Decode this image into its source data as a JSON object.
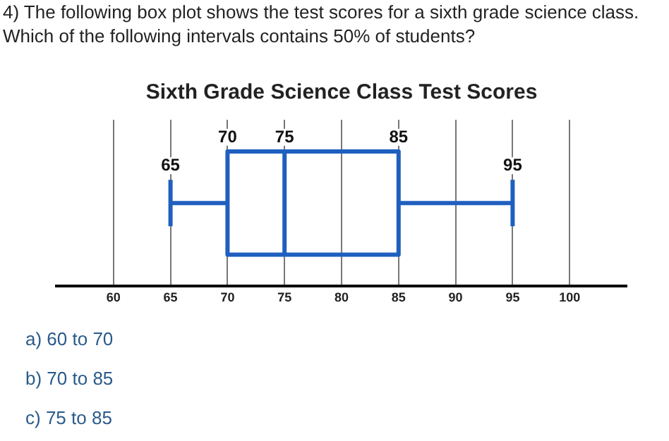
{
  "chart_data": {
    "type": "box",
    "title": "Sixth Grade Science Class Test Scores",
    "orientation": "horizontal",
    "categories": [
      null
    ],
    "boxes": [
      {
        "low": 65,
        "q1": 70,
        "median": 75,
        "q3": 85,
        "high": 95
      }
    ],
    "color": "#1f5fbf",
    "grid": "x",
    "xlim": [
      55,
      105
    ],
    "xticks": [
      60,
      65,
      70,
      75,
      80,
      85,
      90,
      95,
      100
    ],
    "annotations": [
      "4) The following box plot shows the test scores for a sixth grade science class. Which of the following intervals contains 50% of students?",
      "a) 60 to 70",
      "b) 70 to 85",
      "c) 75 to 85",
      {
        "text": "65",
        "x": 65
      },
      {
        "text": "70",
        "x": 70
      },
      {
        "text": "75",
        "x": 75
      },
      {
        "text": "85",
        "x": 85
      },
      {
        "text": "95",
        "x": 95
      }
    ]
  }
}
